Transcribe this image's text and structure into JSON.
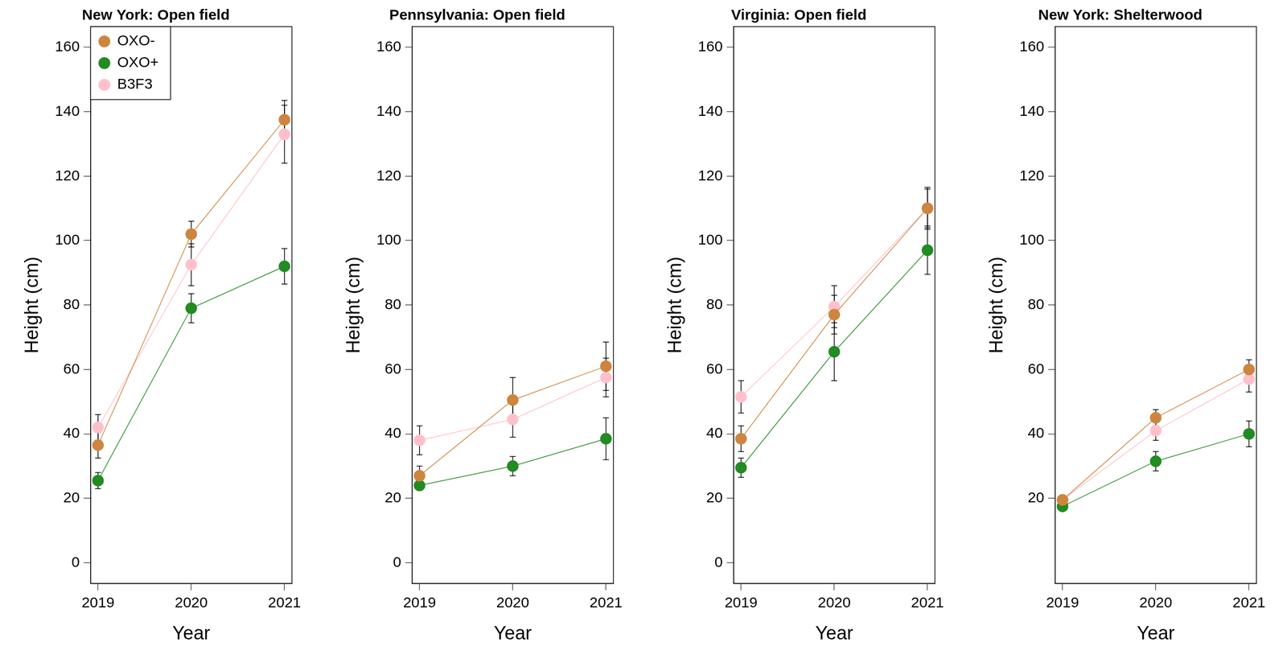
{
  "chart_data": [
    {
      "type": "line",
      "title": "New York: Open field",
      "x_label": "Year",
      "y_label": "Height (cm)",
      "x": [
        2019,
        2020,
        2021
      ],
      "xlim": [
        2018.92,
        2021.08
      ],
      "xticks": [
        2019,
        2020,
        2021
      ],
      "ylim": [
        -6.4,
        166.4
      ],
      "yticks": [
        0,
        20,
        40,
        60,
        80,
        100,
        120,
        140,
        160
      ],
      "grid": false,
      "legend": "top left",
      "marker": "circle",
      "line_style": "solid",
      "series": [
        {
          "name": "OXO-",
          "color": "#cd853f",
          "values": [
            36.5,
            102,
            137.5
          ],
          "errors": [
            4,
            4,
            6
          ]
        },
        {
          "name": "OXO+",
          "color": "#228b22",
          "values": [
            25.5,
            79,
            92
          ],
          "errors": [
            2.5,
            4.5,
            5.5
          ]
        },
        {
          "name": "B3F3",
          "color": "#ffc0cb",
          "values": [
            42,
            92.5,
            133
          ],
          "errors": [
            4,
            6.5,
            9
          ]
        }
      ]
    },
    {
      "type": "line",
      "title": "Pennsylvania: Open field",
      "x_label": "Year",
      "y_label": "Height (cm)",
      "x": [
        2019,
        2020,
        2021
      ],
      "xlim": [
        2018.92,
        2021.08
      ],
      "xticks": [
        2019,
        2020,
        2021
      ],
      "ylim": [
        -6.4,
        166.4
      ],
      "yticks": [
        0,
        20,
        40,
        60,
        80,
        100,
        120,
        140,
        160
      ],
      "grid": false,
      "marker": "circle",
      "line_style": "solid",
      "series": [
        {
          "name": "OXO-",
          "color": "#cd853f",
          "values": [
            27,
            50.5,
            61
          ],
          "errors": [
            3,
            7,
            7.5
          ]
        },
        {
          "name": "OXO+",
          "color": "#228b22",
          "values": [
            24,
            30,
            38.5
          ],
          "errors": [
            1.5,
            3,
            6.5
          ]
        },
        {
          "name": "B3F3",
          "color": "#ffc0cb",
          "values": [
            38,
            44.5,
            57.5
          ],
          "errors": [
            4.5,
            5.5,
            6
          ]
        }
      ]
    },
    {
      "type": "line",
      "title": "Virginia: Open field",
      "x_label": "Year",
      "y_label": "Height (cm)",
      "x": [
        2019,
        2020,
        2021
      ],
      "xlim": [
        2018.92,
        2021.08
      ],
      "xticks": [
        2019,
        2020,
        2021
      ],
      "ylim": [
        -6.4,
        166.4
      ],
      "yticks": [
        0,
        20,
        40,
        60,
        80,
        100,
        120,
        140,
        160
      ],
      "grid": false,
      "marker": "circle",
      "line_style": "solid",
      "series": [
        {
          "name": "OXO-",
          "color": "#cd853f",
          "values": [
            38.5,
            77,
            110
          ],
          "errors": [
            4,
            6,
            6
          ]
        },
        {
          "name": "OXO+",
          "color": "#228b22",
          "values": [
            29.5,
            65.5,
            97
          ],
          "errors": [
            3,
            9,
            7.5
          ]
        },
        {
          "name": "B3F3",
          "color": "#ffc0cb",
          "values": [
            51.5,
            79.5,
            110
          ],
          "errors": [
            5,
            6.5,
            6.5
          ]
        }
      ]
    },
    {
      "type": "line",
      "title": "New York: Shelterwood",
      "x_label": "Year",
      "y_label": "Height (cm)",
      "x": [
        2019,
        2020,
        2021
      ],
      "xlim": [
        2018.92,
        2021.08
      ],
      "xticks": [
        2019,
        2020,
        2021
      ],
      "ylim": [
        -6.4,
        166.4
      ],
      "yticks": [
        20,
        40,
        60,
        80,
        100,
        120,
        140,
        160
      ],
      "grid": false,
      "marker": "circle",
      "line_style": "solid",
      "series": [
        {
          "name": "OXO-",
          "color": "#cd853f",
          "values": [
            19.5,
            45,
            60
          ],
          "errors": [
            1,
            2.5,
            3
          ]
        },
        {
          "name": "OXO+",
          "color": "#228b22",
          "values": [
            17.5,
            31.5,
            40
          ],
          "errors": [
            1,
            3,
            4
          ]
        },
        {
          "name": "B3F3",
          "color": "#ffc0cb",
          "values": [
            19.5,
            41,
            57
          ],
          "errors": [
            1,
            3,
            4
          ]
        }
      ]
    }
  ]
}
